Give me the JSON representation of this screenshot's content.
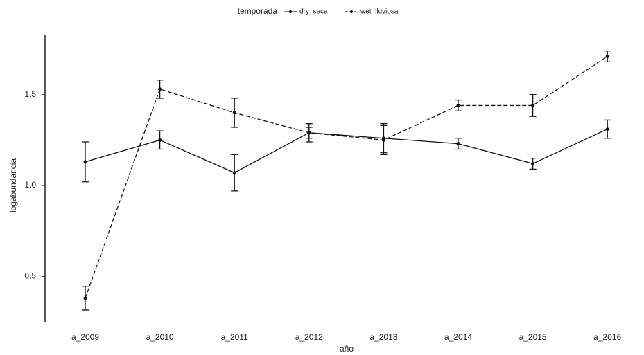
{
  "chart_data": {
    "type": "line",
    "legend_title": "temporada",
    "x_label": "año",
    "y_label": "logabundancia",
    "categories": [
      "a_2009",
      "a_2010",
      "a_2011",
      "a_2012",
      "a_2013",
      "a_2014",
      "a_2015",
      "a_2016"
    ],
    "series": [
      {
        "name": "dry_seca",
        "color": "#111111",
        "dash": false,
        "values": [
          1.13,
          1.25,
          1.07,
          1.29,
          1.26,
          1.23,
          1.12,
          1.31
        ],
        "errors": [
          0.11,
          0.05,
          0.1,
          0.03,
          0.08,
          0.03,
          0.03,
          0.05
        ]
      },
      {
        "name": "wet_lluviosa",
        "color": "#111111",
        "dash": true,
        "values": [
          0.38,
          1.53,
          1.4,
          1.29,
          1.25,
          1.44,
          1.44,
          1.71
        ],
        "errors": [
          0.065,
          0.05,
          0.08,
          0.05,
          0.08,
          0.03,
          0.06,
          0.03
        ]
      }
    ],
    "ylim": [
      0.25,
      1.83
    ],
    "yticks": [
      0.5,
      {
        "value": 1,
        "label": "1.0"
      },
      1.5
    ],
    "grid": false
  }
}
